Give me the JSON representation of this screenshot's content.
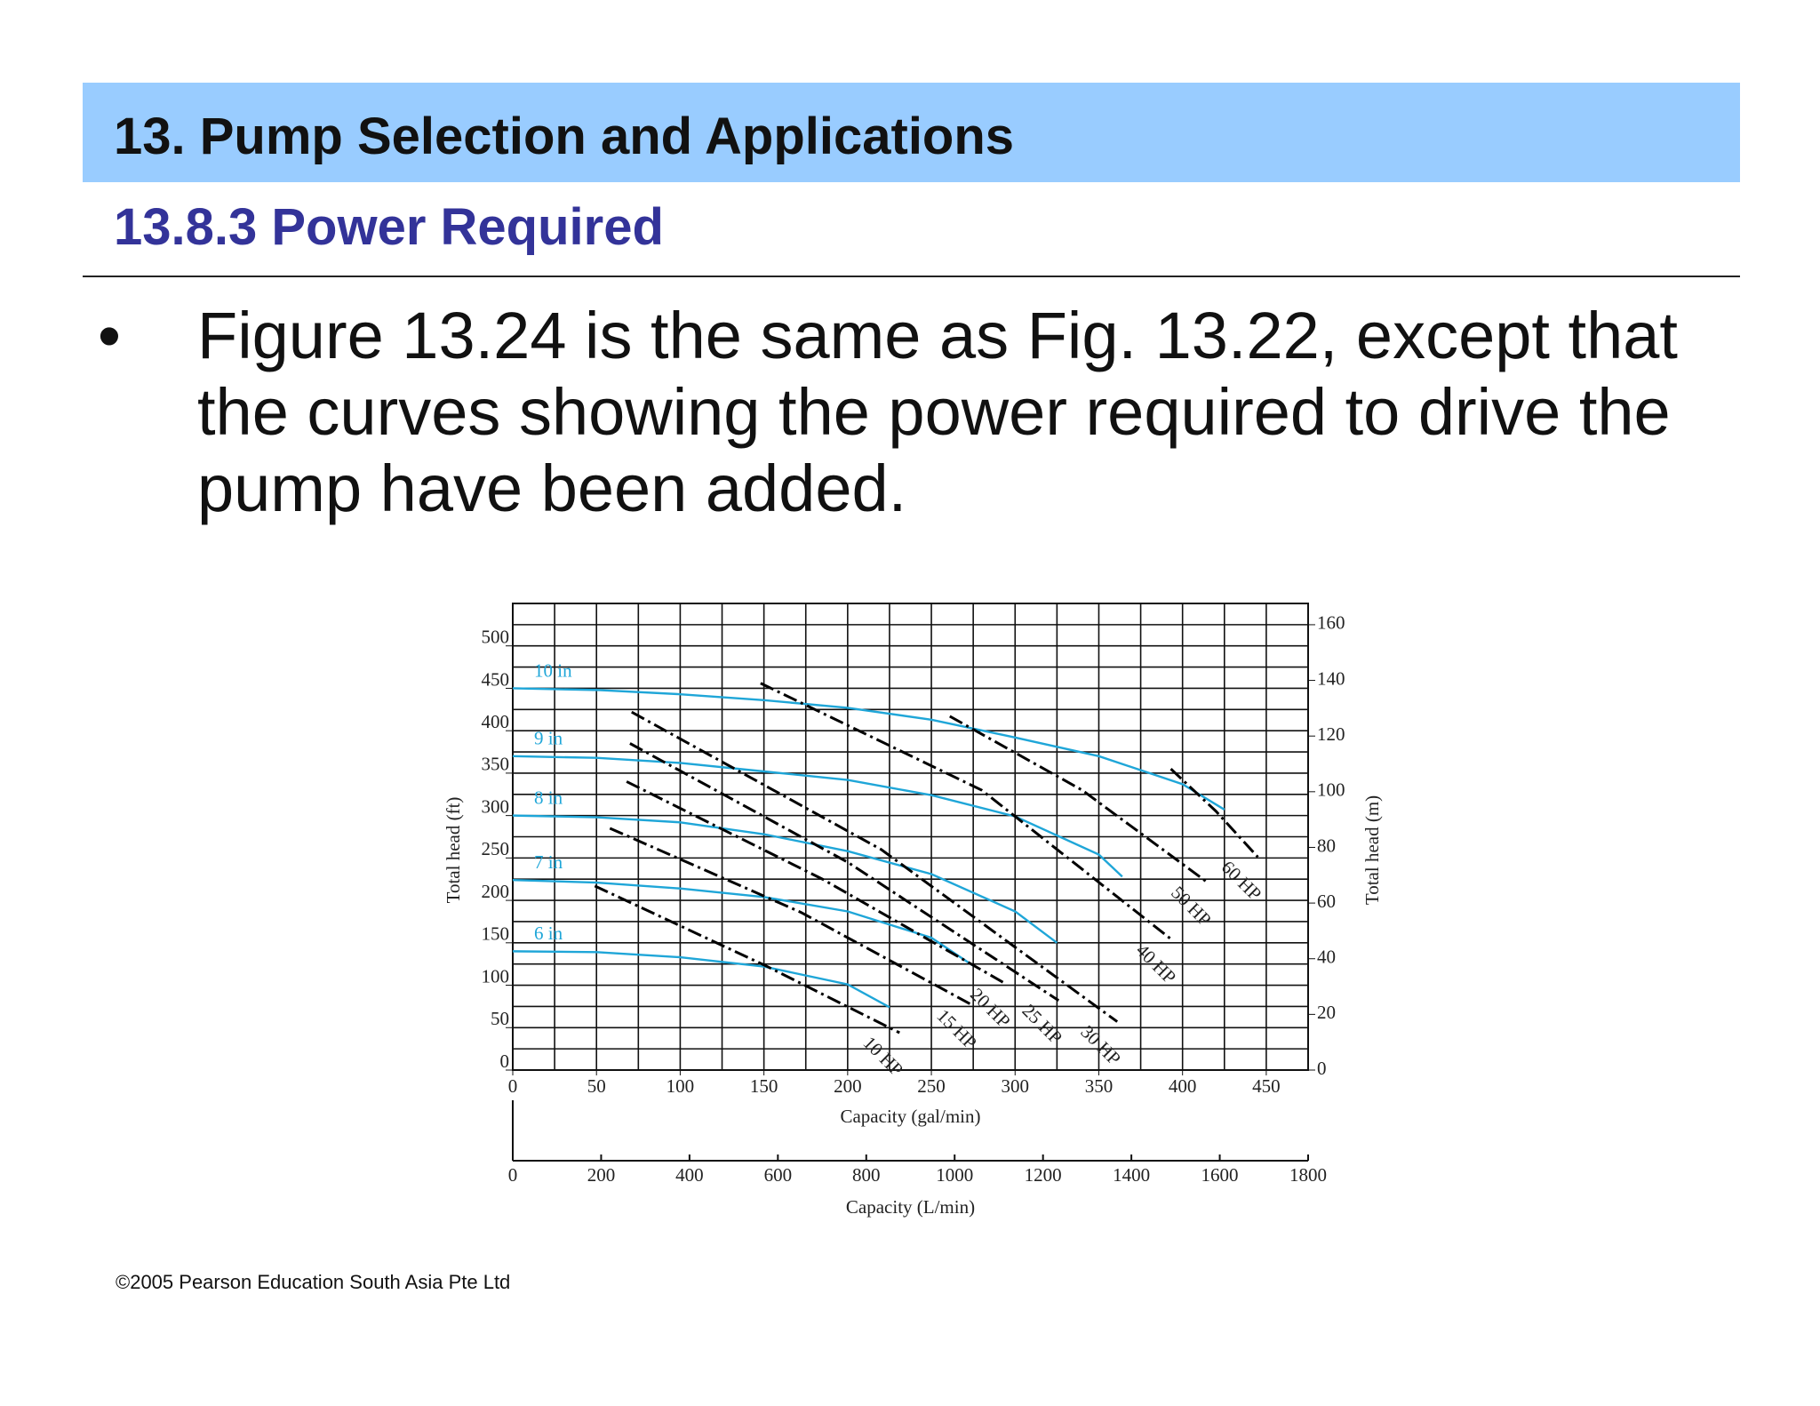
{
  "header": {
    "title": "13. Pump Selection and Applications",
    "subtitle": "13.8.3 Power Required"
  },
  "body": {
    "bullets": [
      "Figure 13.24 is the same as Fig. 13.22, except that the curves showing the power required to drive the pump have been added."
    ]
  },
  "footer": "©2005 Pearson Education South Asia Pte Ltd",
  "chart_data": {
    "type": "line",
    "xlabel": "Capacity (gal/min)",
    "ylabel": "Total head (ft)",
    "y2label": "Total head (m)",
    "x2label": "Capacity (L/min)",
    "xlim": [
      0,
      475
    ],
    "xticks": [
      0,
      50,
      100,
      150,
      200,
      250,
      300,
      350,
      400,
      450
    ],
    "ylim": [
      0,
      550
    ],
    "yticks": [
      0,
      50,
      100,
      150,
      200,
      250,
      300,
      350,
      400,
      450,
      500
    ],
    "y2lim": [
      0,
      167.64
    ],
    "y2ticks": [
      0,
      20,
      40,
      60,
      80,
      100,
      120,
      140,
      160
    ],
    "x2lim": [
      0,
      1800
    ],
    "x2ticks": [
      0,
      200,
      400,
      600,
      800,
      1000,
      1200,
      1400,
      1600,
      1800
    ],
    "grid": true,
    "xgrid": [
      0,
      25,
      50,
      75,
      100,
      125,
      150,
      175,
      200,
      225,
      250,
      275,
      300,
      325,
      350,
      375,
      400,
      425,
      450,
      475
    ],
    "ygrid": [
      0,
      25,
      50,
      75,
      100,
      125,
      150,
      175,
      200,
      225,
      250,
      275,
      300,
      325,
      350,
      375,
      400,
      425,
      450,
      475,
      500,
      525,
      550
    ],
    "series": [
      {
        "name": "10 in",
        "color": "#1fa6d8",
        "x": [
          0,
          50,
          100,
          150,
          200,
          250,
          300,
          350,
          400,
          425
        ],
        "values": [
          450,
          448,
          443,
          436,
          427,
          413,
          392,
          370,
          337,
          307
        ]
      },
      {
        "name": "9 in",
        "color": "#1fa6d8",
        "x": [
          0,
          50,
          100,
          150,
          200,
          250,
          300,
          350,
          364
        ],
        "values": [
          370,
          368,
          362,
          352,
          342,
          324,
          299,
          254,
          228
        ]
      },
      {
        "name": "8 in",
        "color": "#1fa6d8",
        "x": [
          0,
          50,
          100,
          150,
          200,
          250,
          300,
          325
        ],
        "values": [
          300,
          298,
          292,
          278,
          258,
          231,
          187,
          150
        ]
      },
      {
        "name": "7 in",
        "color": "#1fa6d8",
        "x": [
          0,
          50,
          100,
          150,
          200,
          250,
          275
        ],
        "values": [
          224,
          221,
          214,
          204,
          187,
          156,
          123
        ]
      },
      {
        "name": "6 in",
        "color": "#1fa6d8",
        "x": [
          0,
          50,
          100,
          150,
          200,
          225
        ],
        "values": [
          140,
          139,
          133,
          122,
          101,
          74
        ]
      },
      {
        "name": "10 HP",
        "color": "#000000",
        "dashed": true,
        "x": [
          49,
          151,
          231
        ],
        "values": [
          217,
          123,
          44
        ]
      },
      {
        "name": "15 HP",
        "color": "#000000",
        "dashed": true,
        "x": [
          58,
          172,
          275
        ],
        "values": [
          285,
          186,
          76
        ]
      },
      {
        "name": "20 HP",
        "color": "#000000",
        "dashed": true,
        "x": [
          68,
          185,
          295
        ],
        "values": [
          340,
          225,
          101
        ]
      },
      {
        "name": "25 HP",
        "color": "#000000",
        "dashed": true,
        "x": [
          70,
          200,
          326
        ],
        "values": [
          385,
          245,
          82
        ]
      },
      {
        "name": "30 HP",
        "color": "#000000",
        "dashed": true,
        "x": [
          71,
          220,
          361
        ],
        "values": [
          422,
          260,
          57
        ]
      },
      {
        "name": "40 HP",
        "color": "#000000",
        "dashed": true,
        "x": [
          148,
          280,
          394
        ],
        "values": [
          456,
          330,
          153
        ]
      },
      {
        "name": "50 HP",
        "color": "#000000",
        "dashed": true,
        "x": [
          261,
          340,
          415
        ],
        "values": [
          417,
          330,
          221
        ]
      },
      {
        "name": "60 HP",
        "color": "#000000",
        "dashed": true,
        "x": [
          393,
          420,
          445
        ],
        "values": [
          355,
          305,
          251
        ]
      }
    ]
  }
}
